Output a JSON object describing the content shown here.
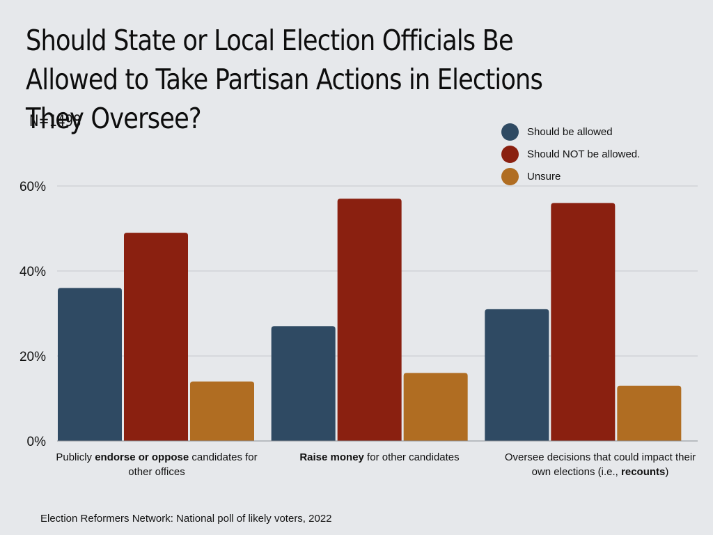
{
  "header": {
    "title": "Should State or Local Election Officials Be Allowed to Take Partisan Actions in Elections They Oversee?",
    "subtitle": "N=1498"
  },
  "footer": {
    "source": "Election Reformers Network: National poll of likely voters, 2022"
  },
  "chart_data": {
    "type": "bar",
    "title": "Should State or Local Election Officials Be Allowed to Take Partisan Actions in Elections They Oversee?",
    "subtitle": "N=1498",
    "categories": [
      [
        {
          "t": "Publicly ",
          "b": false
        },
        {
          "t": "endorse or oppose",
          "b": true
        },
        {
          "t": " candidates for other offices",
          "b": false
        }
      ],
      [
        {
          "t": "Raise money",
          "b": true
        },
        {
          "t": " for other candidates",
          "b": false
        }
      ],
      [
        {
          "t": "Oversee decisions that could impact their own elections (i.e., ",
          "b": false
        },
        {
          "t": "recounts",
          "b": true
        },
        {
          "t": ")",
          "b": false
        }
      ]
    ],
    "category_names": [
      "Publicly endorse or oppose candidates for other offices",
      "Raise money for other candidates",
      "Oversee decisions that could impact their own elections (i.e., recounts)"
    ],
    "series": [
      {
        "name": "Should be allowed",
        "color": "#2f4a63",
        "values": [
          36,
          27,
          31
        ]
      },
      {
        "name": "Should NOT be allowed.",
        "color": "#8a2010",
        "values": [
          49,
          57,
          56
        ]
      },
      {
        "name": "Unsure",
        "color": "#b06d22",
        "values": [
          14,
          16,
          13
        ]
      }
    ],
    "ylim": [
      0,
      60
    ],
    "yticks": [
      0,
      20,
      40,
      60
    ],
    "ytick_labels": [
      "0%",
      "20%",
      "40%",
      "60%"
    ],
    "grid": true,
    "legend_position": "top-right",
    "xlabel": "",
    "ylabel": ""
  }
}
